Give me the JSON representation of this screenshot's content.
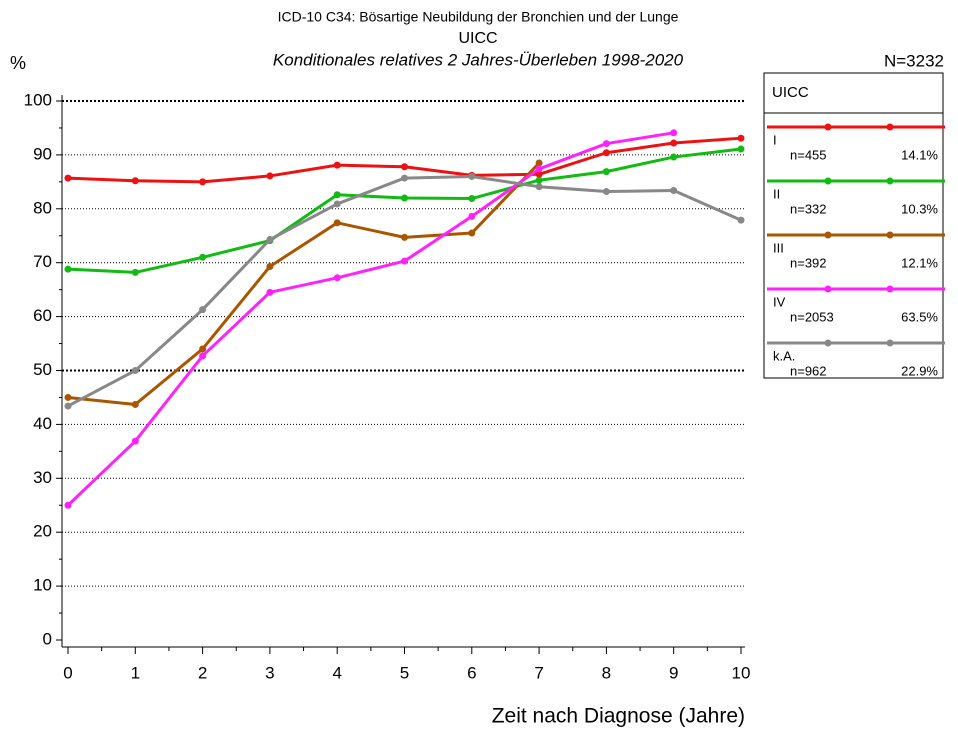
{
  "chart_data": {
    "type": "line",
    "title": "ICD-10 C34: Bösartige Neubildung der Bronchien und der Lunge",
    "subtitle": "UICC",
    "subtitle2": "Konditionales relatives 2 Jahres-Überleben 1998-2020",
    "y_label": "%",
    "total_label": "N=3232",
    "x_label": "Zeit nach Diagnose (Jahre)",
    "legend_title": "UICC",
    "legend_position": "right",
    "x": [
      0,
      1,
      2,
      3,
      4,
      5,
      6,
      7,
      8,
      9,
      10
    ],
    "xlim": [
      0,
      10
    ],
    "xticks": [
      0,
      1,
      2,
      3,
      4,
      5,
      6,
      7,
      8,
      9,
      10
    ],
    "ylim": [
      0,
      100
    ],
    "yticks": [
      0,
      10,
      20,
      30,
      40,
      50,
      60,
      70,
      80,
      90,
      100
    ],
    "grid": true,
    "emphasized_gridlines": [
      50,
      100
    ],
    "series": [
      {
        "name": "I",
        "color": "#ee1111",
        "count_label": "n=455",
        "share_label": "14.1%",
        "values": [
          85.7,
          85.2,
          85.0,
          86.1,
          88.1,
          87.8,
          86.2,
          86.4,
          90.4,
          92.2,
          93.1
        ]
      },
      {
        "name": "II",
        "color": "#11bb11",
        "count_label": "n=332",
        "share_label": "10.3%",
        "values": [
          68.8,
          68.2,
          71.0,
          74.1,
          82.6,
          82.0,
          81.9,
          85.3,
          86.9,
          89.6,
          91.1
        ]
      },
      {
        "name": "III",
        "color": "#aa5500",
        "count_label": "n=392",
        "share_label": "12.1%",
        "values": [
          45.0,
          43.7,
          54.0,
          69.3,
          77.4,
          74.7,
          75.5,
          88.5,
          null,
          null,
          null
        ]
      },
      {
        "name": "IV",
        "color": "#ff22ff",
        "count_label": "n=2053",
        "share_label": "63.5%",
        "values": [
          25.0,
          36.9,
          52.7,
          64.5,
          67.2,
          70.3,
          78.6,
          87.4,
          92.1,
          94.1,
          null
        ]
      },
      {
        "name": "k.A.",
        "color": "#888888",
        "count_label": "n=962",
        "share_label": "22.9%",
        "values": [
          43.4,
          50.0,
          61.3,
          74.3,
          80.9,
          85.7,
          86.0,
          84.1,
          83.2,
          83.4,
          77.9
        ]
      }
    ]
  }
}
